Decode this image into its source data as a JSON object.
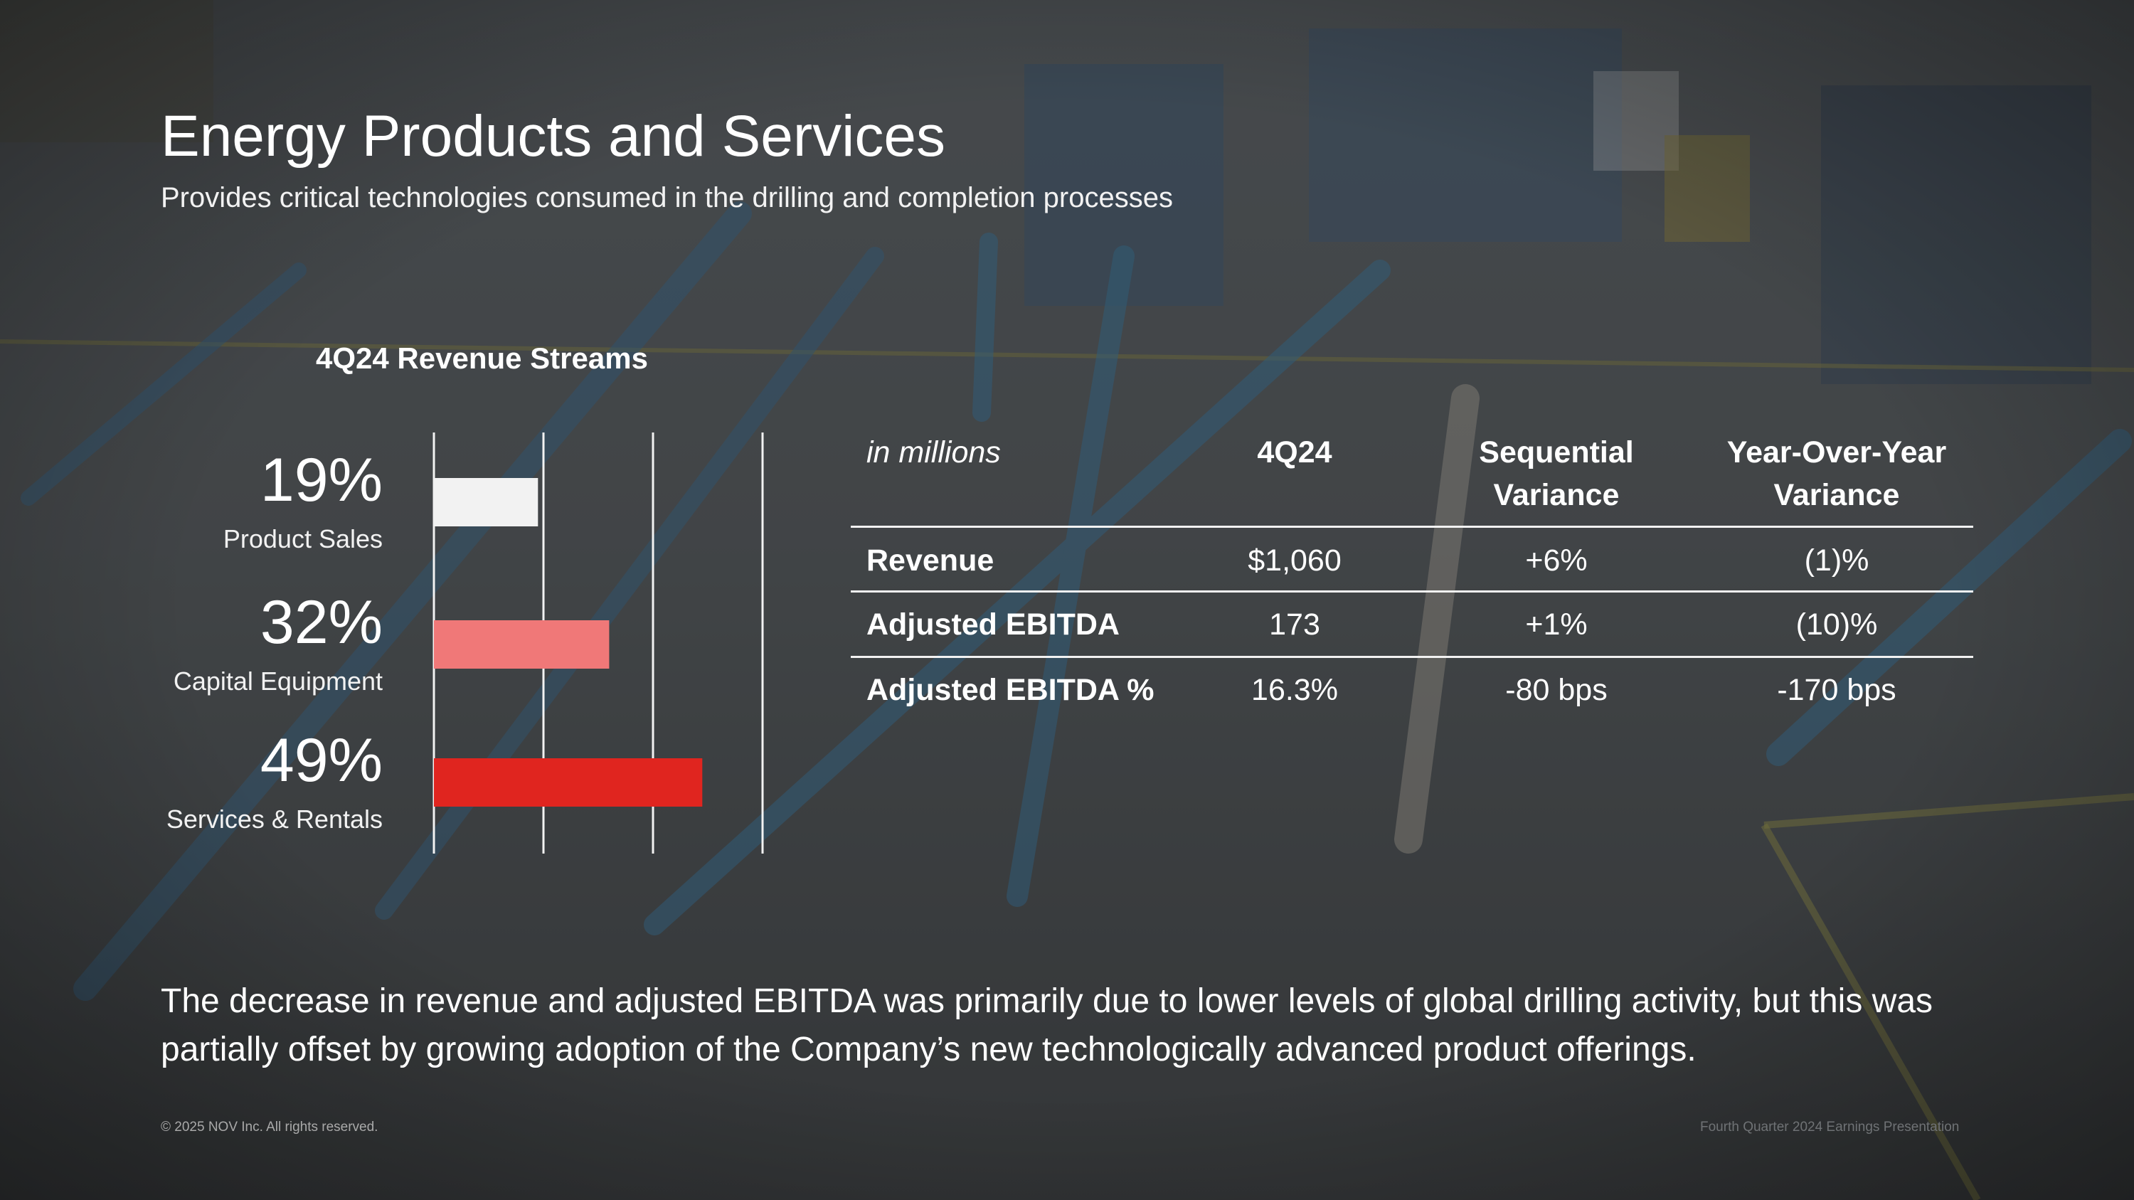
{
  "slide": {
    "title": "Energy Products and Services",
    "subtitle": "Provides critical technologies consumed in the drilling and completion processes",
    "commentary": "The decrease in revenue and adjusted EBITDA was primarily due to lower levels of global drilling activity, but this was partially offset by growing adoption of the Company’s new technologically advanced product offerings.",
    "copyright": "© 2025 NOV Inc. All rights reserved.",
    "footer_label": "Fourth Quarter 2024 Earnings Presentation"
  },
  "chart_data": {
    "type": "bar",
    "orientation": "horizontal",
    "title": "4Q24 Revenue Streams",
    "categories": [
      "Product Sales",
      "Capital Equipment",
      "Services & Rentals"
    ],
    "values": [
      19,
      32,
      49
    ],
    "value_labels": [
      "19%",
      "32%",
      "49%"
    ],
    "colors": [
      "#f2f2f2",
      "#f07878",
      "#e0251f"
    ],
    "xlim": [
      0,
      60
    ],
    "gridlines": [
      0,
      20,
      40,
      60
    ],
    "grid": true,
    "legend": "none"
  },
  "table": {
    "unit_label": "in millions",
    "columns": [
      "4Q24",
      "Sequential Variance",
      "Year-Over-Year Variance"
    ],
    "column_lines": [
      [
        "4Q24"
      ],
      [
        "Sequential",
        "Variance"
      ],
      [
        "Year-Over-Year",
        "Variance"
      ]
    ],
    "rows": [
      {
        "label": "Revenue",
        "values": [
          "$1,060",
          "+6%",
          "(1)%"
        ]
      },
      {
        "label": "Adjusted EBITDA",
        "values": [
          "173",
          "+1%",
          "(10)%"
        ]
      },
      {
        "label": "Adjusted EBITDA %",
        "values": [
          "16.3%",
          "-80 bps",
          "-170 bps"
        ]
      }
    ]
  },
  "colors": {
    "overlay": "#3c3f41",
    "rule": "#f2f2f2",
    "text": "#ffffff"
  }
}
